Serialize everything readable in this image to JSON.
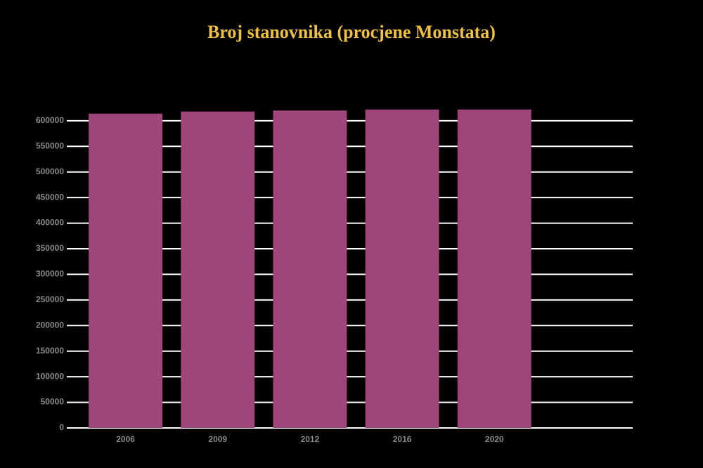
{
  "chart_data": {
    "type": "bar",
    "title": "Broj stanovnika (procjene Monstata)",
    "categories": [
      "2006",
      "2009",
      "2012",
      "2016",
      "2020",
      null
    ],
    "values": [
      614000,
      618000,
      620000,
      622000,
      622000,
      null
    ],
    "color": "#a0457a",
    "ylim": [
      0,
      630000
    ],
    "yticks": [
      0,
      50000,
      100000,
      150000,
      200000,
      250000,
      300000,
      350000,
      400000,
      450000,
      500000,
      550000,
      600000
    ],
    "grid": true
  }
}
